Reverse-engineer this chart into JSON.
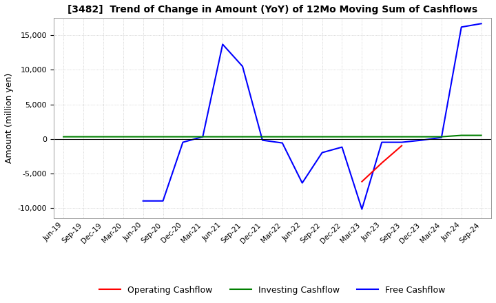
{
  "title": "[3482]  Trend of Change in Amount (YoY) of 12Mo Moving Sum of Cashflows",
  "ylabel": "Amount (million yen)",
  "ylim": [
    -11500,
    17500
  ],
  "yticks": [
    -10000,
    -5000,
    0,
    5000,
    10000,
    15000
  ],
  "background_color": "#ffffff",
  "grid_color": "#bbbbbb",
  "x_labels": [
    "Jun-19",
    "Sep-19",
    "Dec-19",
    "Mar-20",
    "Jun-20",
    "Sep-20",
    "Dec-20",
    "Mar-21",
    "Jun-21",
    "Sep-21",
    "Dec-21",
    "Mar-22",
    "Jun-22",
    "Sep-22",
    "Dec-22",
    "Mar-23",
    "Jun-23",
    "Sep-23",
    "Dec-23",
    "Mar-24",
    "Jun-24",
    "Sep-24"
  ],
  "operating": [
    null,
    null,
    null,
    null,
    null,
    null,
    null,
    null,
    null,
    null,
    null,
    null,
    null,
    null,
    null,
    -6200,
    -3500,
    -1000,
    null,
    null,
    null,
    null
  ],
  "investing": [
    300,
    300,
    300,
    300,
    300,
    300,
    300,
    300,
    300,
    300,
    300,
    300,
    300,
    300,
    300,
    300,
    300,
    300,
    300,
    300,
    500,
    500
  ],
  "free": [
    null,
    null,
    null,
    null,
    -9000,
    -9000,
    -500,
    300,
    13700,
    10500,
    -200,
    -600,
    -6400,
    -2000,
    -1200,
    -10200,
    -500,
    -500,
    -200,
    200,
    16200,
    16700
  ],
  "line_colors": {
    "operating": "#ff0000",
    "investing": "#008000",
    "free": "#0000ff"
  },
  "legend_labels": {
    "operating": "Operating Cashflow",
    "investing": "Investing Cashflow",
    "free": "Free Cashflow"
  }
}
